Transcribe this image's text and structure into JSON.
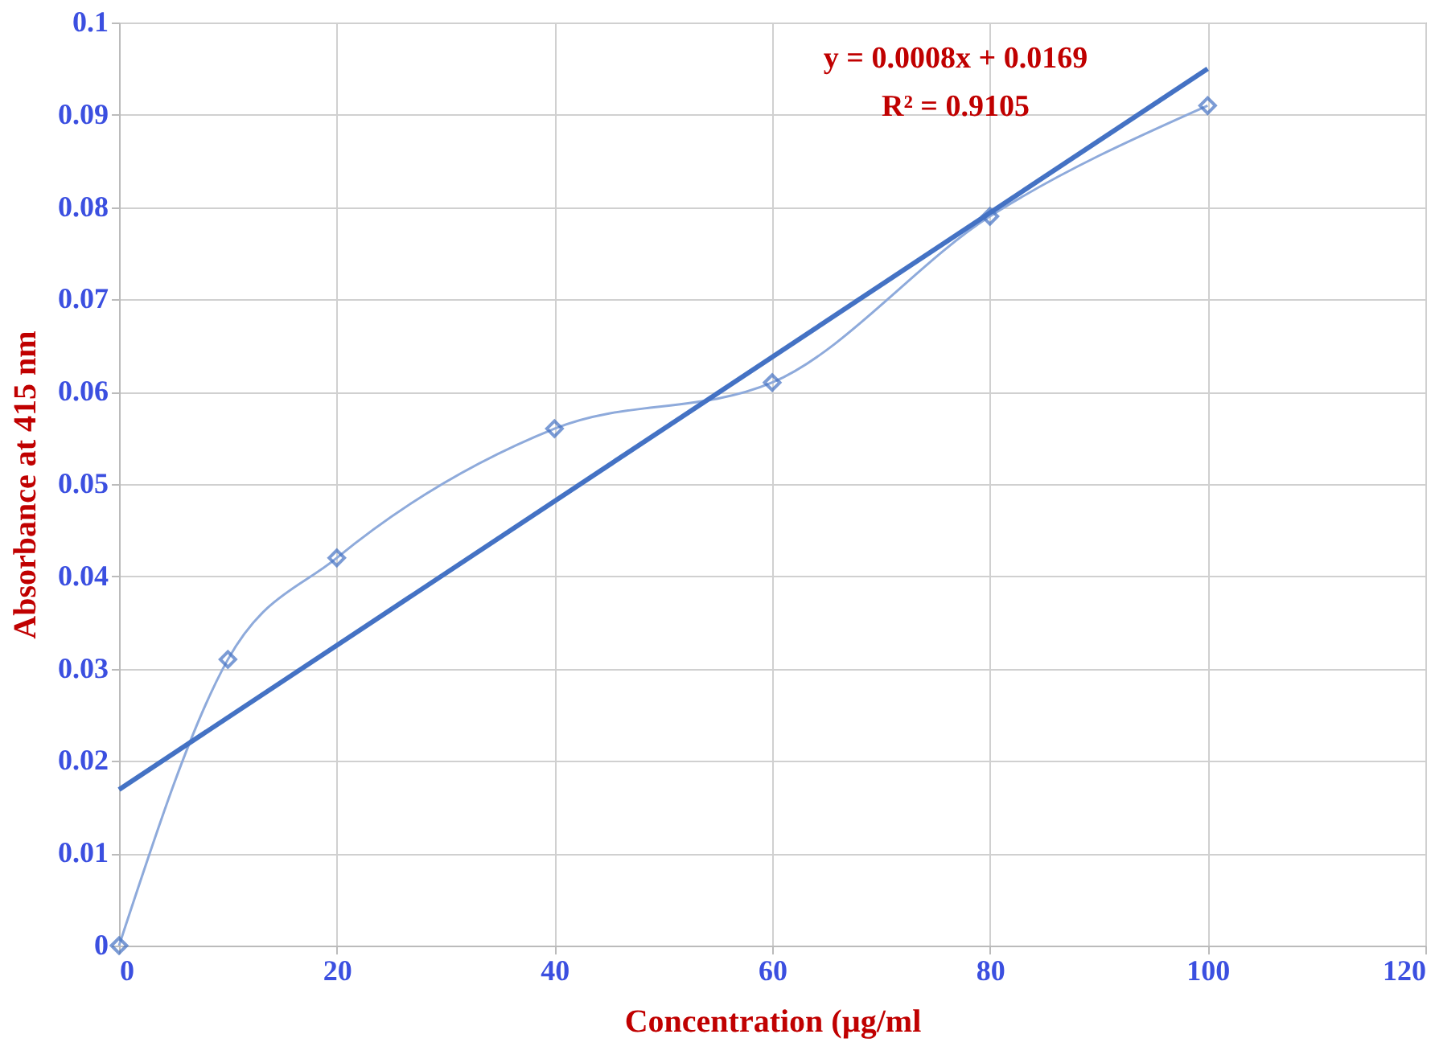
{
  "chart_data": {
    "type": "line",
    "xlabel": "Concentration (µg/ml",
    "ylabel": "Absorbance at 415 nm",
    "annotations": [
      "y = 0.0008x + 0.0169",
      "R² = 0.9105"
    ],
    "series": [
      {
        "color": "#8eaadb",
        "marker": "diamond",
        "x": [
          0,
          10,
          20,
          40,
          60,
          80,
          100
        ],
        "values": [
          0,
          0.031,
          0.042,
          0.056,
          0.061,
          0.079,
          0.091
        ]
      },
      {
        "color": "#4472c4",
        "marker": "none",
        "x": [
          0,
          100
        ],
        "values": [
          0.0169,
          0.095
        ]
      }
    ],
    "xlim": [
      0,
      120
    ],
    "xticks": [
      0,
      20,
      40,
      60,
      80,
      100,
      120
    ],
    "ylim": [
      0,
      0.1
    ],
    "yticks": [
      0,
      0.01,
      0.02,
      0.03,
      0.04,
      0.05,
      0.06,
      0.07,
      0.08,
      0.09,
      0.1
    ],
    "grid": true
  }
}
